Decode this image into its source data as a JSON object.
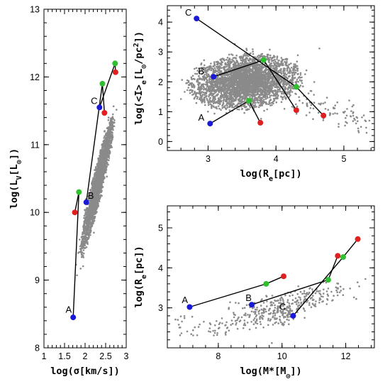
{
  "colors": {
    "blue": "#1a1ad6",
    "green": "#2fbf2f",
    "red": "#e02020",
    "cloud": "#8a8a8a",
    "line": "#000000"
  },
  "chart_data": [
    {
      "id": "left",
      "type": "scatter",
      "xlabel": "log(σ[km/s])",
      "ylabel": "log(L_V[L_⊙])",
      "xlim": [
        1.0,
        3.0
      ],
      "ylim": [
        8.0,
        13.0
      ],
      "xticks": [
        {
          "v": 1,
          "l": "1"
        },
        {
          "v": 1.5,
          "l": "1.5"
        },
        {
          "v": 2,
          "l": "2"
        },
        {
          "v": 2.5,
          "l": "2.5"
        },
        {
          "v": 3,
          "l": "3"
        }
      ],
      "yticks": [
        {
          "v": 8,
          "l": "8"
        },
        {
          "v": 9,
          "l": "9"
        },
        {
          "v": 10,
          "l": "10"
        },
        {
          "v": 11,
          "l": "11"
        },
        {
          "v": 12,
          "l": "12"
        },
        {
          "v": 13,
          "l": "13"
        }
      ],
      "cloud": {
        "shape": "ellipse",
        "center": [
          2.3,
          10.4
        ],
        "axes": [
          0.14,
          1.05
        ],
        "tilt": [
          0.38,
          1.0
        ],
        "n": 2600
      },
      "tracks": [
        {
          "label": "A",
          "points": [
            {
              "c": "blue",
              "x": 1.71,
              "y": 8.45
            },
            {
              "c": "green",
              "x": 1.85,
              "y": 10.3
            },
            {
              "c": "red",
              "x": 1.75,
              "y": 10.0
            }
          ]
        },
        {
          "label": "B",
          "points": [
            {
              "c": "blue",
              "x": 2.03,
              "y": 10.15
            },
            {
              "c": "green",
              "x": 2.42,
              "y": 11.9
            },
            {
              "c": "red",
              "x": 2.47,
              "y": 11.47
            }
          ]
        },
        {
          "label": "C",
          "points": [
            {
              "c": "blue",
              "x": 2.35,
              "y": 11.55
            },
            {
              "c": "green",
              "x": 2.73,
              "y": 12.2
            },
            {
              "c": "red",
              "x": 2.74,
              "y": 12.07
            }
          ]
        }
      ],
      "labels": [
        {
          "t": "A",
          "x": 1.6,
          "y": 8.52
        },
        {
          "t": "B",
          "x": 2.14,
          "y": 10.2
        },
        {
          "t": "C",
          "x": 2.22,
          "y": 11.6
        }
      ]
    },
    {
      "id": "topright",
      "type": "scatter",
      "xlabel": "log(R_e[pc])",
      "ylabel": "log(<I>_e[L_⊙/pc²])",
      "xlim": [
        2.4,
        5.45
      ],
      "ylim": [
        -0.3,
        4.55
      ],
      "xticks": [
        {
          "v": 3,
          "l": "3"
        },
        {
          "v": 4,
          "l": "4"
        },
        {
          "v": 5,
          "l": "5"
        }
      ],
      "yticks": [
        {
          "v": 0,
          "l": "0"
        },
        {
          "v": 1,
          "l": "1"
        },
        {
          "v": 2,
          "l": "2"
        },
        {
          "v": 3,
          "l": "3"
        },
        {
          "v": 4,
          "l": "4"
        }
      ],
      "cloud": {
        "shape": "ellipse",
        "center": [
          3.55,
          2.0
        ],
        "axes": [
          0.95,
          0.78
        ],
        "tilt": [
          1.0,
          -0.45
        ],
        "n": 3400,
        "tail": {
          "from": [
            4.3,
            1.4
          ],
          "to": [
            5.3,
            0.55
          ],
          "n": 90
        }
      },
      "tracks": [
        {
          "label": "A",
          "points": [
            {
              "c": "blue",
              "x": 3.03,
              "y": 0.6
            },
            {
              "c": "green",
              "x": 3.6,
              "y": 1.37
            },
            {
              "c": "red",
              "x": 3.77,
              "y": 0.63
            }
          ]
        },
        {
          "label": "B",
          "points": [
            {
              "c": "blue",
              "x": 3.08,
              "y": 2.17
            },
            {
              "c": "green",
              "x": 3.82,
              "y": 2.73
            },
            {
              "c": "red",
              "x": 4.3,
              "y": 1.05
            }
          ]
        },
        {
          "label": "C",
          "points": [
            {
              "c": "blue",
              "x": 2.83,
              "y": 4.12
            },
            {
              "c": "green",
              "x": 4.3,
              "y": 1.83
            },
            {
              "c": "red",
              "x": 4.7,
              "y": 0.87
            }
          ]
        }
      ],
      "labels": [
        {
          "t": "A",
          "x": 2.9,
          "y": 0.7
        },
        {
          "t": "B",
          "x": 2.9,
          "y": 2.25
        },
        {
          "t": "C",
          "x": 2.71,
          "y": 4.22
        }
      ]
    },
    {
      "id": "bottomright",
      "type": "scatter",
      "xlabel": "log(M*[M_⊙])",
      "ylabel": "log(R_e[pc])",
      "xlim": [
        6.4,
        12.9
      ],
      "ylim": [
        2.0,
        5.55
      ],
      "xticks": [
        {
          "v": 8,
          "l": "8"
        },
        {
          "v": 10,
          "l": "10"
        },
        {
          "v": 12,
          "l": "12"
        }
      ],
      "yticks": [
        {
          "v": 3,
          "l": "3"
        },
        {
          "v": 4,
          "l": "4"
        },
        {
          "v": 5,
          "l": "5"
        }
      ],
      "cloud": {
        "shape": "sparse",
        "n": 420
      },
      "tracks": [
        {
          "label": "A",
          "points": [
            {
              "c": "blue",
              "x": 7.1,
              "y": 3.02
            },
            {
              "c": "green",
              "x": 9.5,
              "y": 3.6
            },
            {
              "c": "red",
              "x": 10.05,
              "y": 3.79
            }
          ]
        },
        {
          "label": "B",
          "points": [
            {
              "c": "blue",
              "x": 9.05,
              "y": 3.08
            },
            {
              "c": "green",
              "x": 11.45,
              "y": 3.7
            },
            {
              "c": "red",
              "x": 11.75,
              "y": 4.3
            }
          ]
        },
        {
          "label": "C",
          "points": [
            {
              "c": "blue",
              "x": 10.35,
              "y": 2.8
            },
            {
              "c": "green",
              "x": 11.92,
              "y": 4.27
            },
            {
              "c": "red",
              "x": 12.38,
              "y": 4.72
            }
          ]
        }
      ],
      "labels": [
        {
          "t": "A",
          "x": 6.95,
          "y": 3.12
        },
        {
          "t": "B",
          "x": 8.95,
          "y": 3.17
        },
        {
          "t": "C",
          "x": 10.02,
          "y": 2.95
        }
      ]
    }
  ]
}
